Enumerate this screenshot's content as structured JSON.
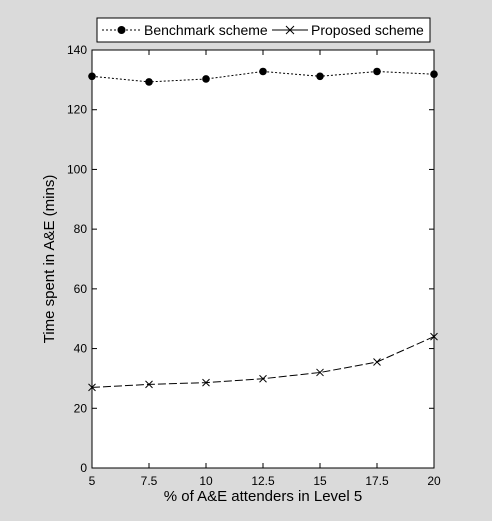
{
  "chart_data": {
    "type": "line",
    "title": "",
    "xlabel": "% of A&E attenders in Level 5",
    "ylabel": "Time spent in A&E (mins)",
    "xlim": [
      5,
      20
    ],
    "ylim": [
      0,
      140
    ],
    "x_ticks": [
      "5",
      "7.5",
      "10",
      "12.5",
      "15",
      "17.5",
      "20"
    ],
    "y_ticks": [
      "0",
      "20",
      "40",
      "60",
      "80",
      "100",
      "120",
      "140"
    ],
    "x": [
      5,
      7.5,
      10,
      12.5,
      15,
      17.5,
      20
    ],
    "series": [
      {
        "name": "Benchmark scheme",
        "values": [
          131.2,
          129.3,
          130.3,
          132.8,
          131.2,
          132.8,
          131.9
        ],
        "marker": "filled-circle",
        "line_style": "dotted",
        "color": "#000000"
      },
      {
        "name": "Proposed scheme",
        "values": [
          27.0,
          28.0,
          28.6,
          29.9,
          32.0,
          35.5,
          44.0
        ],
        "marker": "x",
        "line_style": "dashed",
        "color": "#000000"
      }
    ],
    "grid": false,
    "legend_position": "top"
  }
}
